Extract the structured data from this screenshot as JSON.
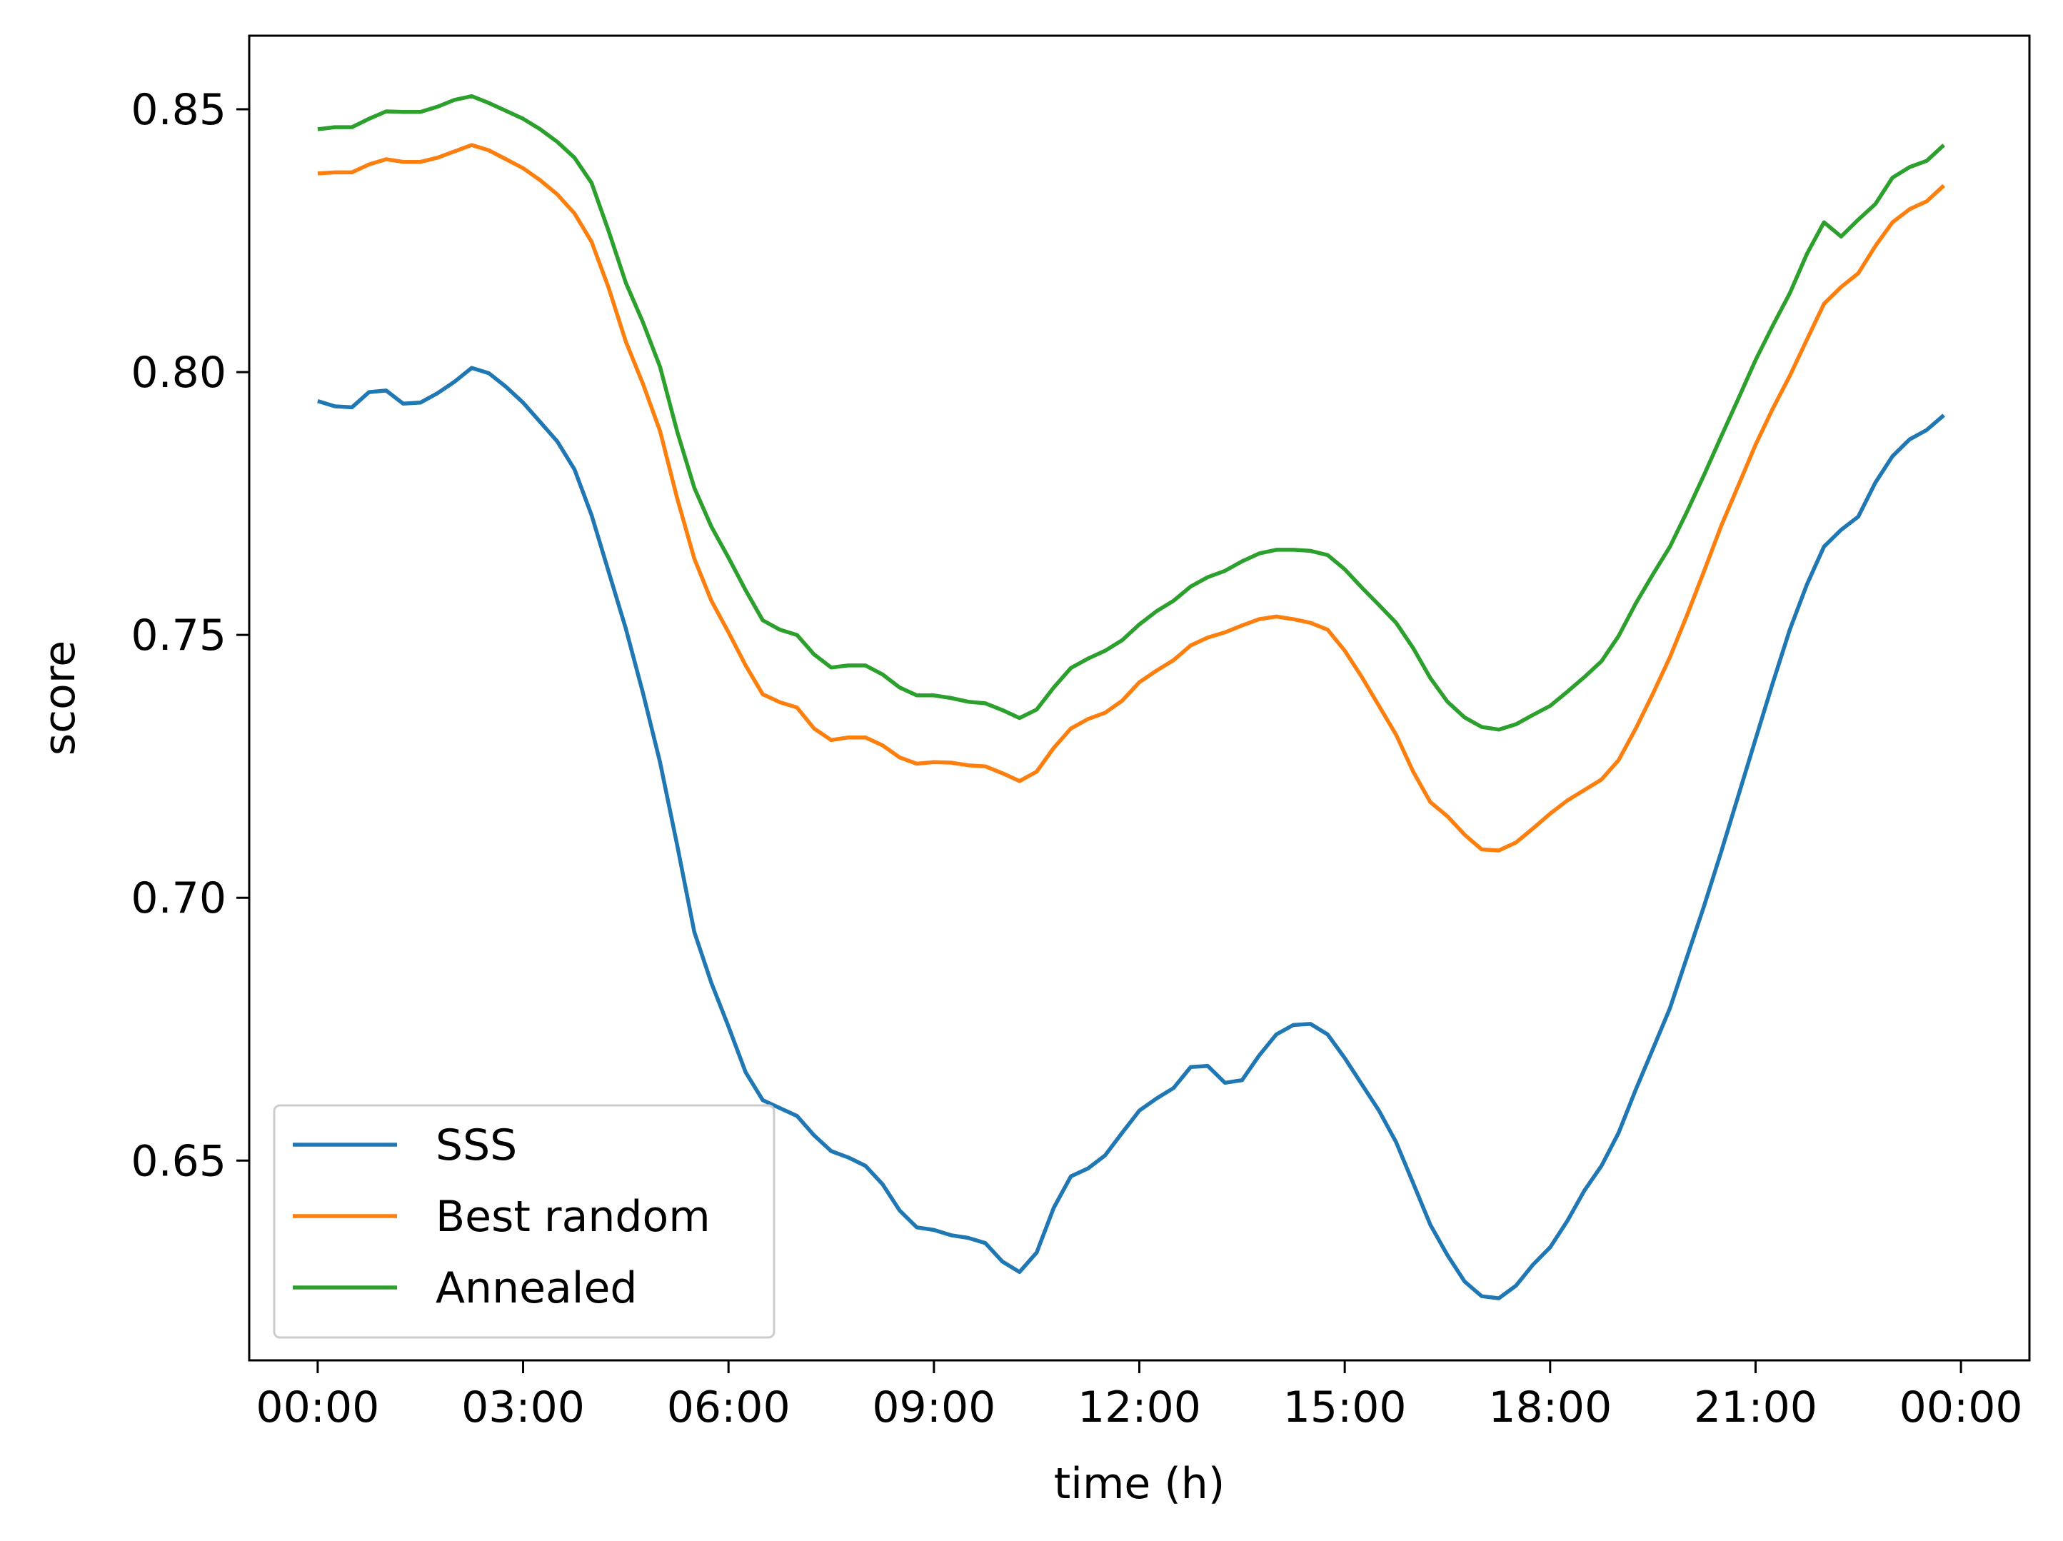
{
  "chart_data": {
    "type": "line",
    "xlabel": "time (h)",
    "ylabel": "score",
    "xlim": [
      -1.0,
      25.0
    ],
    "ylim": [
      0.612,
      0.864
    ],
    "x_ticks": [
      {
        "value": 0,
        "label": "00:00"
      },
      {
        "value": 3,
        "label": "03:00"
      },
      {
        "value": 6,
        "label": "06:00"
      },
      {
        "value": 9,
        "label": "09:00"
      },
      {
        "value": 12,
        "label": "12:00"
      },
      {
        "value": 15,
        "label": "15:00"
      },
      {
        "value": 18,
        "label": "18:00"
      },
      {
        "value": 21,
        "label": "21:00"
      },
      {
        "value": 24,
        "label": "00:00"
      }
    ],
    "y_ticks": [
      {
        "value": 0.65,
        "label": "0.65"
      },
      {
        "value": 0.7,
        "label": "0.70"
      },
      {
        "value": 0.75,
        "label": "0.75"
      },
      {
        "value": 0.8,
        "label": "0.80"
      },
      {
        "value": 0.85,
        "label": "0.85"
      }
    ],
    "grid": false,
    "legend_position": "lower-left",
    "series": [
      {
        "name": "SSS",
        "color": "#1f77b4",
        "points": [
          [
            0.0,
            0.7945
          ],
          [
            0.25,
            0.7935
          ],
          [
            0.5,
            0.7933
          ],
          [
            0.75,
            0.7962
          ],
          [
            1.0,
            0.7965
          ],
          [
            1.25,
            0.794
          ],
          [
            1.5,
            0.7942
          ],
          [
            1.75,
            0.796
          ],
          [
            2.0,
            0.7982
          ],
          [
            2.25,
            0.8008
          ],
          [
            2.5,
            0.7998
          ],
          [
            2.75,
            0.7972
          ],
          [
            3.0,
            0.7942
          ],
          [
            3.25,
            0.7905
          ],
          [
            3.5,
            0.7868
          ],
          [
            3.75,
            0.7815
          ],
          [
            4.0,
            0.7728
          ],
          [
            4.25,
            0.762
          ],
          [
            4.5,
            0.7512
          ],
          [
            4.75,
            0.739
          ],
          [
            5.0,
            0.7258
          ],
          [
            5.25,
            0.71
          ],
          [
            5.5,
            0.6935
          ],
          [
            5.75,
            0.6838
          ],
          [
            6.0,
            0.6755
          ],
          [
            6.25,
            0.6668
          ],
          [
            6.5,
            0.6615
          ],
          [
            6.75,
            0.66
          ],
          [
            7.0,
            0.6585
          ],
          [
            7.25,
            0.6548
          ],
          [
            7.5,
            0.6518
          ],
          [
            7.75,
            0.6506
          ],
          [
            8.0,
            0.649
          ],
          [
            8.25,
            0.6455
          ],
          [
            8.5,
            0.6405
          ],
          [
            8.75,
            0.6373
          ],
          [
            9.0,
            0.6368
          ],
          [
            9.25,
            0.6358
          ],
          [
            9.5,
            0.6353
          ],
          [
            9.75,
            0.6343
          ],
          [
            10.0,
            0.6308
          ],
          [
            10.25,
            0.6288
          ],
          [
            10.5,
            0.6325
          ],
          [
            10.75,
            0.641
          ],
          [
            11.0,
            0.647
          ],
          [
            11.25,
            0.6485
          ],
          [
            11.5,
            0.651
          ],
          [
            11.75,
            0.6553
          ],
          [
            12.0,
            0.6595
          ],
          [
            12.25,
            0.6618
          ],
          [
            12.5,
            0.6638
          ],
          [
            12.75,
            0.6678
          ],
          [
            13.0,
            0.668
          ],
          [
            13.25,
            0.6648
          ],
          [
            13.5,
            0.6653
          ],
          [
            13.75,
            0.67
          ],
          [
            14.0,
            0.674
          ],
          [
            14.25,
            0.6758
          ],
          [
            14.5,
            0.676
          ],
          [
            14.75,
            0.674
          ],
          [
            15.0,
            0.6695
          ],
          [
            15.25,
            0.6645
          ],
          [
            15.5,
            0.6595
          ],
          [
            15.75,
            0.6535
          ],
          [
            16.0,
            0.6457
          ],
          [
            16.25,
            0.6378
          ],
          [
            16.5,
            0.632
          ],
          [
            16.75,
            0.627
          ],
          [
            17.0,
            0.6242
          ],
          [
            17.25,
            0.6238
          ],
          [
            17.5,
            0.6262
          ],
          [
            17.75,
            0.6302
          ],
          [
            18.0,
            0.6335
          ],
          [
            18.25,
            0.6385
          ],
          [
            18.5,
            0.6443
          ],
          [
            18.75,
            0.649
          ],
          [
            19.0,
            0.6553
          ],
          [
            19.25,
            0.6635
          ],
          [
            19.5,
            0.6712
          ],
          [
            19.75,
            0.679
          ],
          [
            20.0,
            0.6888
          ],
          [
            20.25,
            0.6985
          ],
          [
            20.5,
            0.7088
          ],
          [
            20.75,
            0.7195
          ],
          [
            21.0,
            0.7302
          ],
          [
            21.25,
            0.7408
          ],
          [
            21.5,
            0.751
          ],
          [
            21.75,
            0.7596
          ],
          [
            22.0,
            0.7668
          ],
          [
            22.25,
            0.77
          ],
          [
            22.5,
            0.7725
          ],
          [
            22.75,
            0.779
          ],
          [
            23.0,
            0.784
          ],
          [
            23.25,
            0.7872
          ],
          [
            23.5,
            0.789
          ],
          [
            23.75,
            0.7918
          ]
        ]
      },
      {
        "name": "Best random",
        "color": "#ff7f0e",
        "points": [
          [
            0.0,
            0.8378
          ],
          [
            0.25,
            0.838
          ],
          [
            0.5,
            0.838
          ],
          [
            0.75,
            0.8395
          ],
          [
            1.0,
            0.8405
          ],
          [
            1.25,
            0.84
          ],
          [
            1.5,
            0.84
          ],
          [
            1.75,
            0.8408
          ],
          [
            2.0,
            0.842
          ],
          [
            2.25,
            0.8432
          ],
          [
            2.5,
            0.8422
          ],
          [
            2.75,
            0.8405
          ],
          [
            3.0,
            0.8388
          ],
          [
            3.25,
            0.8365
          ],
          [
            3.5,
            0.8338
          ],
          [
            3.75,
            0.8302
          ],
          [
            4.0,
            0.8248
          ],
          [
            4.25,
            0.816
          ],
          [
            4.5,
            0.8058
          ],
          [
            4.75,
            0.7978
          ],
          [
            5.0,
            0.7888
          ],
          [
            5.25,
            0.776
          ],
          [
            5.5,
            0.7645
          ],
          [
            5.75,
            0.7565
          ],
          [
            6.0,
            0.7505
          ],
          [
            6.25,
            0.7442
          ],
          [
            6.5,
            0.7387
          ],
          [
            6.75,
            0.7372
          ],
          [
            7.0,
            0.7362
          ],
          [
            7.25,
            0.7322
          ],
          [
            7.5,
            0.73
          ],
          [
            7.75,
            0.7305
          ],
          [
            8.0,
            0.7305
          ],
          [
            8.25,
            0.729
          ],
          [
            8.5,
            0.7267
          ],
          [
            8.75,
            0.7255
          ],
          [
            9.0,
            0.7258
          ],
          [
            9.25,
            0.7257
          ],
          [
            9.5,
            0.7252
          ],
          [
            9.75,
            0.725
          ],
          [
            10.0,
            0.7237
          ],
          [
            10.25,
            0.7222
          ],
          [
            10.5,
            0.724
          ],
          [
            10.75,
            0.7285
          ],
          [
            11.0,
            0.7322
          ],
          [
            11.25,
            0.734
          ],
          [
            11.5,
            0.7352
          ],
          [
            11.75,
            0.7375
          ],
          [
            12.0,
            0.741
          ],
          [
            12.25,
            0.7432
          ],
          [
            12.5,
            0.7452
          ],
          [
            12.75,
            0.748
          ],
          [
            13.0,
            0.7495
          ],
          [
            13.25,
            0.7505
          ],
          [
            13.5,
            0.7518
          ],
          [
            13.75,
            0.753
          ],
          [
            14.0,
            0.7535
          ],
          [
            14.25,
            0.753
          ],
          [
            14.5,
            0.7523
          ],
          [
            14.75,
            0.751
          ],
          [
            15.0,
            0.747
          ],
          [
            15.25,
            0.742
          ],
          [
            15.5,
            0.7365
          ],
          [
            15.75,
            0.731
          ],
          [
            16.0,
            0.724
          ],
          [
            16.25,
            0.7182
          ],
          [
            16.5,
            0.7155
          ],
          [
            16.75,
            0.712
          ],
          [
            17.0,
            0.7092
          ],
          [
            17.25,
            0.709
          ],
          [
            17.5,
            0.7105
          ],
          [
            17.75,
            0.7132
          ],
          [
            18.0,
            0.716
          ],
          [
            18.25,
            0.7185
          ],
          [
            18.5,
            0.7205
          ],
          [
            18.75,
            0.7225
          ],
          [
            19.0,
            0.7262
          ],
          [
            19.25,
            0.7322
          ],
          [
            19.5,
            0.7388
          ],
          [
            19.75,
            0.7458
          ],
          [
            20.0,
            0.7538
          ],
          [
            20.25,
            0.7622
          ],
          [
            20.5,
            0.7708
          ],
          [
            20.75,
            0.7785
          ],
          [
            21.0,
            0.7862
          ],
          [
            21.25,
            0.793
          ],
          [
            21.5,
            0.7993
          ],
          [
            21.75,
            0.8062
          ],
          [
            22.0,
            0.813
          ],
          [
            22.25,
            0.8162
          ],
          [
            22.5,
            0.8188
          ],
          [
            22.75,
            0.824
          ],
          [
            23.0,
            0.8285
          ],
          [
            23.25,
            0.831
          ],
          [
            23.5,
            0.8325
          ],
          [
            23.75,
            0.8355
          ]
        ]
      },
      {
        "name": "Annealed",
        "color": "#2ca02c",
        "points": [
          [
            0.0,
            0.8462
          ],
          [
            0.25,
            0.8466
          ],
          [
            0.5,
            0.8466
          ],
          [
            0.75,
            0.8482
          ],
          [
            1.0,
            0.8496
          ],
          [
            1.25,
            0.8495
          ],
          [
            1.5,
            0.8495
          ],
          [
            1.75,
            0.8505
          ],
          [
            2.0,
            0.8518
          ],
          [
            2.25,
            0.8525
          ],
          [
            2.5,
            0.8512
          ],
          [
            2.75,
            0.8497
          ],
          [
            3.0,
            0.8482
          ],
          [
            3.25,
            0.8462
          ],
          [
            3.5,
            0.8438
          ],
          [
            3.75,
            0.8408
          ],
          [
            4.0,
            0.836
          ],
          [
            4.25,
            0.8268
          ],
          [
            4.5,
            0.817
          ],
          [
            4.75,
            0.8095
          ],
          [
            5.0,
            0.801
          ],
          [
            5.25,
            0.7887
          ],
          [
            5.5,
            0.778
          ],
          [
            5.75,
            0.7706
          ],
          [
            6.0,
            0.7647
          ],
          [
            6.25,
            0.7585
          ],
          [
            6.5,
            0.7528
          ],
          [
            6.75,
            0.751
          ],
          [
            7.0,
            0.75
          ],
          [
            7.25,
            0.7463
          ],
          [
            7.5,
            0.7438
          ],
          [
            7.75,
            0.7442
          ],
          [
            8.0,
            0.7442
          ],
          [
            8.25,
            0.7425
          ],
          [
            8.5,
            0.74
          ],
          [
            8.75,
            0.7385
          ],
          [
            9.0,
            0.7385
          ],
          [
            9.25,
            0.738
          ],
          [
            9.5,
            0.7373
          ],
          [
            9.75,
            0.737
          ],
          [
            10.0,
            0.7357
          ],
          [
            10.25,
            0.7342
          ],
          [
            10.5,
            0.7358
          ],
          [
            10.75,
            0.74
          ],
          [
            11.0,
            0.7437
          ],
          [
            11.25,
            0.7455
          ],
          [
            11.5,
            0.747
          ],
          [
            11.75,
            0.749
          ],
          [
            12.0,
            0.752
          ],
          [
            12.25,
            0.7545
          ],
          [
            12.5,
            0.7565
          ],
          [
            12.75,
            0.7592
          ],
          [
            13.0,
            0.761
          ],
          [
            13.25,
            0.7622
          ],
          [
            13.5,
            0.764
          ],
          [
            13.75,
            0.7655
          ],
          [
            14.0,
            0.7662
          ],
          [
            14.25,
            0.7662
          ],
          [
            14.5,
            0.766
          ],
          [
            14.75,
            0.7652
          ],
          [
            15.0,
            0.7625
          ],
          [
            15.25,
            0.759
          ],
          [
            15.5,
            0.7557
          ],
          [
            15.75,
            0.7523
          ],
          [
            16.0,
            0.7475
          ],
          [
            16.25,
            0.7418
          ],
          [
            16.5,
            0.7373
          ],
          [
            16.75,
            0.7343
          ],
          [
            17.0,
            0.7325
          ],
          [
            17.25,
            0.732
          ],
          [
            17.5,
            0.733
          ],
          [
            17.75,
            0.7348
          ],
          [
            18.0,
            0.7365
          ],
          [
            18.25,
            0.7392
          ],
          [
            18.5,
            0.742
          ],
          [
            18.75,
            0.745
          ],
          [
            19.0,
            0.7498
          ],
          [
            19.25,
            0.756
          ],
          [
            19.5,
            0.7615
          ],
          [
            19.75,
            0.7668
          ],
          [
            20.0,
            0.7735
          ],
          [
            20.25,
            0.7805
          ],
          [
            20.5,
            0.7878
          ],
          [
            20.75,
            0.795
          ],
          [
            21.0,
            0.8023
          ],
          [
            21.25,
            0.8088
          ],
          [
            21.5,
            0.815
          ],
          [
            21.75,
            0.8225
          ],
          [
            22.0,
            0.8285
          ],
          [
            22.25,
            0.8258
          ],
          [
            22.5,
            0.829
          ],
          [
            22.75,
            0.832
          ],
          [
            23.0,
            0.837
          ],
          [
            23.25,
            0.839
          ],
          [
            23.5,
            0.8402
          ],
          [
            23.75,
            0.8432
          ]
        ]
      }
    ]
  }
}
